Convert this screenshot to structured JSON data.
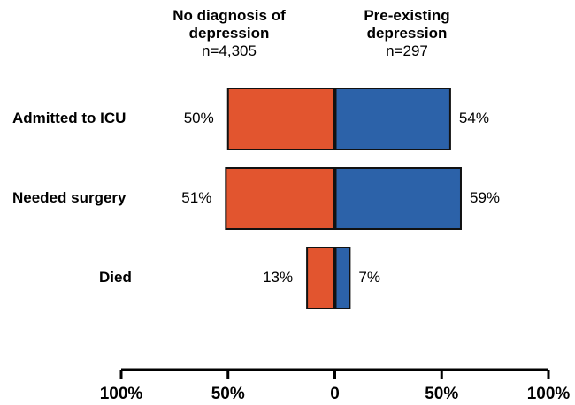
{
  "chart_data": {
    "type": "butterfly-bar",
    "categories": [
      "Admitted to ICU",
      "Needed surgery",
      "Died"
    ],
    "series": [
      {
        "name": "No diagnosis of depression",
        "n": "n=4,305",
        "color": "#e2552f",
        "values": [
          -50,
          -51,
          -13
        ],
        "value_labels": [
          "50%",
          "51%",
          "13%"
        ]
      },
      {
        "name": "Pre-existing depression",
        "n": "n=297",
        "color": "#2c62a9",
        "values": [
          54,
          59,
          7
        ],
        "value_labels": [
          "54%",
          "59%",
          "7%"
        ]
      }
    ],
    "xlim": [
      -100,
      100
    ],
    "xticks": [
      {
        "value": -100,
        "label": "100%"
      },
      {
        "value": -50,
        "label": "50%"
      },
      0,
      {
        "value": 50,
        "label": "50%"
      },
      {
        "value": 100,
        "label": "100%"
      }
    ]
  }
}
